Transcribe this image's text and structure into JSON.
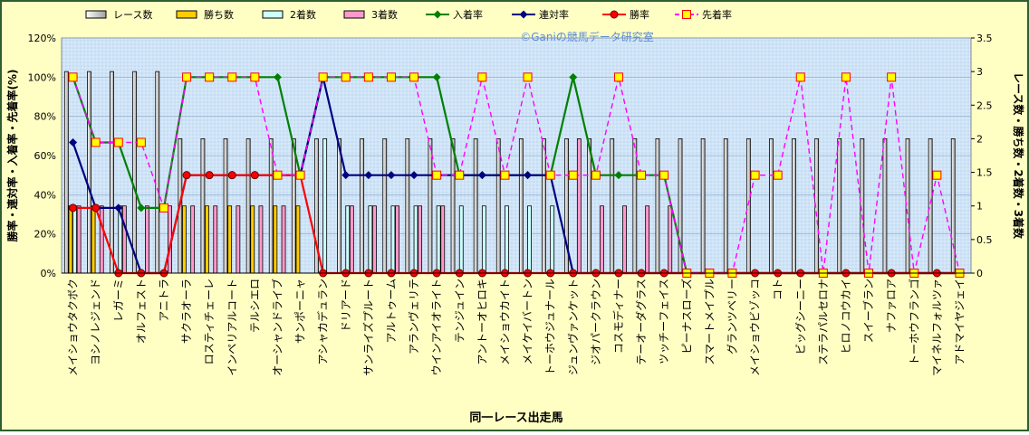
{
  "chart_data": {
    "type": "combo",
    "watermark": "©Ganiの競馬データ研究室",
    "x_label": "同一レース出走馬",
    "y_label": "勝率・連対率・入着率・先着率(%)",
    "y2_label": "レース数・勝ち数・2着数・3着数",
    "categories": [
      "メイショウタクボク",
      "ヨシノレジェンド",
      "レガーミ",
      "オルフェスト",
      "アニトラ",
      "サクラオーラ",
      "ロスティチェーレ",
      "インペリアルコート",
      "テルシエロ",
      "オーシャンドライブ",
      "サンポーニャ",
      "アシャカデュラン",
      "ドリアード",
      "サンライズプルート",
      "アルトゥーム",
      "アランヴェリテ",
      "ウインアイオライト",
      "テンジュイン",
      "アントーオヒロキ",
      "メイショウカイト",
      "メイケイバートン",
      "トーホウジュナール",
      "ジュンヴァンケット",
      "ジオパークラウン",
      "コスモディナー",
      "テーオーダグラス",
      "ツッチーフェイス",
      "ピーナスローズ",
      "スマートメイプル",
      "グランツベリー",
      "メイショウビゾッコ",
      "コト",
      "ビッグシーニー",
      "ステラパルセロナ",
      "ヒロノコウカイ",
      "スイーブラン",
      "ナファロア",
      "トーホウフランゴ",
      "マイネルフォルツァ",
      "アドマイヤジェイ"
    ],
    "ylim": [
      0,
      120
    ],
    "yticks": [
      {
        "value": 0,
        "label": "0%"
      },
      {
        "value": 20,
        "label": "20%"
      },
      {
        "value": 40,
        "label": "40%"
      },
      {
        "value": 60,
        "label": "60%"
      },
      {
        "value": 80,
        "label": "80%"
      },
      {
        "value": 100,
        "label": "100%"
      },
      {
        "value": 120,
        "label": "120%"
      }
    ],
    "y2lim": [
      0,
      3.5
    ],
    "y2ticks": [
      0,
      0.5,
      1,
      1.5,
      2,
      2.5,
      3,
      3.5
    ],
    "grid": true,
    "legend": "top",
    "series": [
      {
        "name": "レース数",
        "type": "bar",
        "axis": "y2",
        "color": "#e0e0e0",
        "values": [
          3,
          3,
          3,
          3,
          3,
          2,
          2,
          2,
          2,
          2,
          2,
          2,
          2,
          2,
          2,
          2,
          2,
          2,
          2,
          2,
          2,
          2,
          2,
          2,
          2,
          2,
          2,
          2,
          2,
          2,
          2,
          2,
          2,
          2,
          2,
          2,
          2,
          2,
          2,
          2
        ]
      },
      {
        "name": "勝ち数",
        "type": "bar",
        "axis": "y2",
        "color": "#ffcc00",
        "values": [
          1,
          1,
          0,
          0,
          0,
          1,
          1,
          1,
          1,
          1,
          1,
          0,
          0,
          0,
          0,
          0,
          0,
          0,
          0,
          0,
          0,
          0,
          0,
          0,
          0,
          0,
          0,
          0,
          0,
          0,
          0,
          0,
          0,
          0,
          0,
          0,
          0,
          0,
          0,
          0
        ]
      },
      {
        "name": "2着数",
        "type": "bar",
        "axis": "y2",
        "color": "#ccffff",
        "values": [
          1,
          0,
          1,
          0,
          0,
          0,
          0,
          0,
          0,
          0,
          0,
          2,
          1,
          1,
          1,
          1,
          1,
          1,
          1,
          1,
          1,
          1,
          0,
          0,
          0,
          0,
          0,
          0,
          0,
          0,
          0,
          0,
          0,
          0,
          0,
          0,
          0,
          0,
          0,
          0
        ]
      },
      {
        "name": "3着数",
        "type": "bar",
        "axis": "y2",
        "color": "#ff99cc",
        "values": [
          1,
          1,
          1,
          1,
          1,
          1,
          1,
          1,
          1,
          1,
          0,
          0,
          1,
          1,
          1,
          1,
          1,
          0,
          0,
          0,
          0,
          0,
          2,
          1,
          1,
          1,
          1,
          0,
          0,
          0,
          0,
          0,
          0,
          0,
          0,
          0,
          0,
          0,
          0,
          0
        ]
      },
      {
        "name": "入着率",
        "type": "line",
        "color": "#008000",
        "marker": "diamond",
        "values": [
          100,
          66.7,
          66.7,
          33.3,
          33.3,
          100,
          100,
          100,
          100,
          100,
          50,
          100,
          100,
          100,
          100,
          100,
          100,
          50,
          50,
          50,
          50,
          50,
          100,
          50,
          50,
          50,
          50,
          0,
          0,
          0,
          0,
          0,
          0,
          0,
          0,
          0,
          0,
          0,
          0,
          0
        ]
      },
      {
        "name": "連対率",
        "type": "line",
        "color": "#000080",
        "marker": "diamond",
        "values": [
          66.7,
          33.3,
          33.3,
          0,
          0,
          50,
          50,
          50,
          50,
          50,
          50,
          100,
          50,
          50,
          50,
          50,
          50,
          50,
          50,
          50,
          50,
          50,
          0,
          0,
          0,
          0,
          0,
          0,
          0,
          0,
          0,
          0,
          0,
          0,
          0,
          0,
          0,
          0,
          0,
          0
        ]
      },
      {
        "name": "勝率",
        "type": "line",
        "color": "#ff0000",
        "marker": "circle",
        "values": [
          33.3,
          33.3,
          0,
          0,
          0,
          50,
          50,
          50,
          50,
          50,
          50,
          0,
          0,
          0,
          0,
          0,
          0,
          0,
          0,
          0,
          0,
          0,
          0,
          0,
          0,
          0,
          0,
          0,
          0,
          0,
          0,
          0,
          0,
          0,
          0,
          0,
          0,
          0,
          0,
          0
        ]
      },
      {
        "name": "先着率",
        "type": "line",
        "color": "#ff00ff",
        "marker": "square",
        "dashed": true,
        "values": [
          100,
          66.7,
          66.7,
          66.7,
          33.3,
          100,
          100,
          100,
          100,
          50,
          50,
          100,
          100,
          100,
          100,
          100,
          50,
          50,
          100,
          50,
          100,
          50,
          50,
          50,
          100,
          50,
          50,
          0,
          0,
          0,
          50,
          50,
          100,
          0,
          100,
          0,
          100,
          0,
          50,
          0
        ]
      }
    ]
  }
}
